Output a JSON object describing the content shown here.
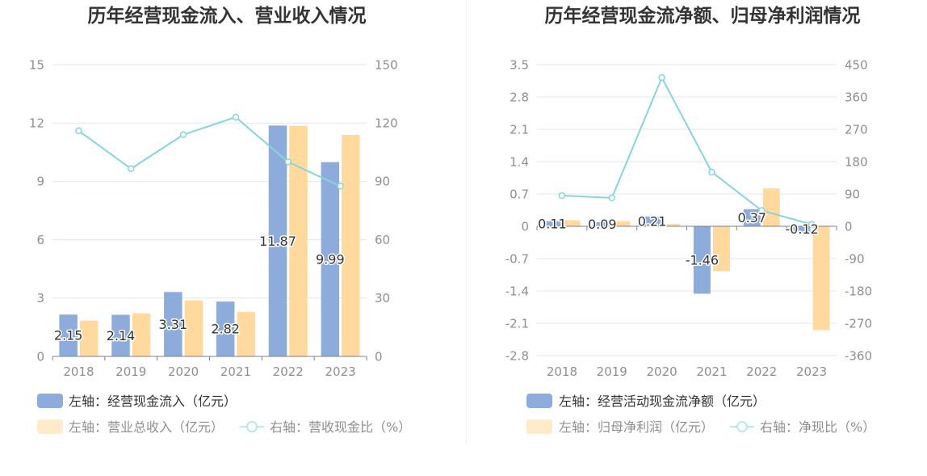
{
  "chart_data": [
    {
      "type": "bar",
      "title": "历年经营现金流入、营业收入情况",
      "categories": [
        "2018",
        "2019",
        "2020",
        "2021",
        "2022",
        "2023"
      ],
      "y_left": {
        "min": 0,
        "max": 15,
        "ticks": [
          0,
          3,
          6,
          9,
          12,
          15
        ]
      },
      "y_right": {
        "min": 0,
        "max": 150,
        "ticks": [
          0,
          30,
          60,
          90,
          120,
          150
        ]
      },
      "grid": true,
      "legend_position": "bottom-left",
      "series": [
        {
          "name": "左轴：经营现金流入（亿元）",
          "type": "bar",
          "axis": "left",
          "color": "#8EACDB",
          "data_labels": true,
          "values": [
            2.15,
            2.14,
            3.31,
            2.82,
            11.87,
            9.99
          ]
        },
        {
          "name": "左轴：营业总收入（亿元）",
          "type": "bar",
          "axis": "left",
          "color": "#FFD99E",
          "data_labels": false,
          "values": [
            1.84,
            2.21,
            2.88,
            2.29,
            11.85,
            11.39
          ]
        },
        {
          "name": "右轴：营收现金比（%）",
          "type": "line",
          "axis": "right",
          "color": "#88D4DC",
          "data_labels": false,
          "values": [
            116,
            96.5,
            114,
            123,
            100,
            87.5
          ]
        }
      ]
    },
    {
      "type": "bar",
      "title": "历年经营现金流净额、归母净利润情况",
      "categories": [
        "2018",
        "2019",
        "2020",
        "2021",
        "2022",
        "2023"
      ],
      "y_left": {
        "min": -2.8,
        "max": 3.5,
        "ticks": [
          -2.8,
          -2.1,
          -1.4,
          -0.7,
          0,
          0.7,
          1.4,
          2.1,
          2.8,
          3.5
        ]
      },
      "y_right": {
        "min": -360,
        "max": 450,
        "ticks": [
          -360,
          -270,
          -180,
          -90,
          0,
          90,
          180,
          270,
          360,
          450
        ]
      },
      "grid": true,
      "legend_position": "bottom-left",
      "series": [
        {
          "name": "左轴：经营活动现金流净额（亿元）",
          "type": "bar",
          "axis": "left",
          "color": "#8EACDB",
          "data_labels": true,
          "values": [
            0.11,
            0.09,
            0.21,
            -1.46,
            0.37,
            -0.12
          ]
        },
        {
          "name": "左轴：归母净利润（亿元）",
          "type": "bar",
          "axis": "left",
          "color": "#FFD99E",
          "data_labels": false,
          "values": [
            0.13,
            0.11,
            0.05,
            -0.97,
            0.82,
            -2.25
          ]
        },
        {
          "name": "右轴：净现比（%）",
          "type": "line",
          "axis": "right",
          "color": "#88D4DC",
          "data_labels": false,
          "values": [
            85.5,
            79,
            414,
            151,
            44,
            5.3
          ]
        }
      ]
    }
  ]
}
